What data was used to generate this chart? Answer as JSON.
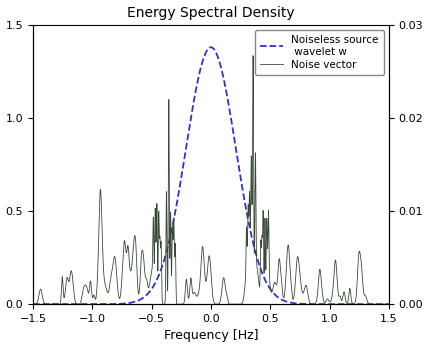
{
  "title": "Energy Spectral Density",
  "xlabel": "Frequency [Hz]",
  "xlim": [
    -1.5,
    1.5
  ],
  "left_ylim": [
    0,
    1.5
  ],
  "right_ylim": [
    0,
    0.03
  ],
  "left_yticks": [
    0,
    0.5,
    1.0,
    1.5
  ],
  "right_yticks": [
    0,
    0.01,
    0.02,
    0.03
  ],
  "wavelet_color": "#3333bb",
  "wavelet_linestyle": "--",
  "wavelet_label": "Noiseless source\n wavelet w",
  "noise_color": "#3a4a3a",
  "noise_label": "Noise vector",
  "wavelet_sigma": 0.21,
  "wavelet_peak": 1.38,
  "background_color": "#ffffff",
  "figsize": [
    4.29,
    3.48
  ],
  "dpi": 100
}
